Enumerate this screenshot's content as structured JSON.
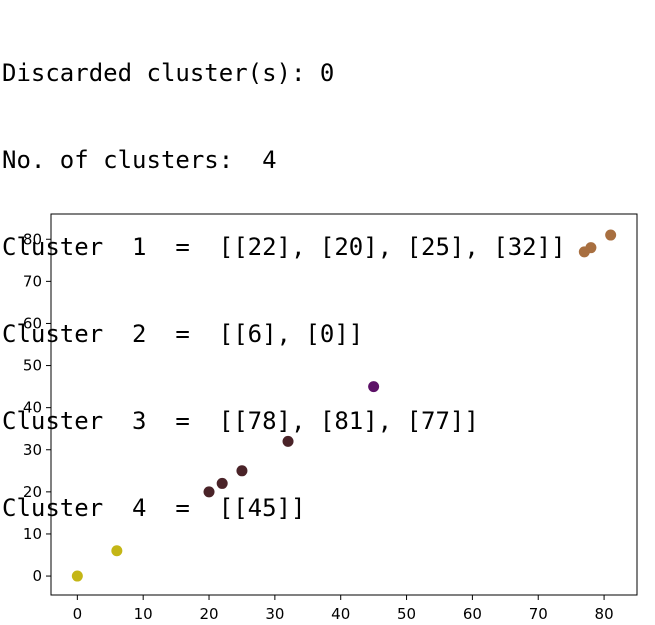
{
  "console": {
    "lines": [
      "Discarded cluster(s): 0",
      "No. of clusters:  4",
      "Cluster  1  =  [[22], [20], [25], [32]]",
      "Cluster  2  =  [[6], [0]]",
      "Cluster  3  =  [[78], [81], [77]]",
      "Cluster  4  =  [[45]]"
    ]
  },
  "chart_data": {
    "type": "scatter",
    "title": "",
    "xlabel": "",
    "ylabel": "",
    "xlim": [
      -4,
      85
    ],
    "ylim": [
      -4.5,
      86
    ],
    "xticks": [
      0,
      10,
      20,
      30,
      40,
      50,
      60,
      70,
      80
    ],
    "yticks": [
      0,
      10,
      20,
      30,
      40,
      50,
      60,
      70,
      80
    ],
    "grid": false,
    "series": [
      {
        "color": "#4a2328",
        "points": [
          [
            22,
            22
          ],
          [
            20,
            20
          ],
          [
            25,
            25
          ],
          [
            32,
            32
          ]
        ]
      },
      {
        "color": "#c4b616",
        "points": [
          [
            6,
            6
          ],
          [
            0,
            0
          ]
        ]
      },
      {
        "color": "#a86f40",
        "points": [
          [
            78,
            78
          ],
          [
            81,
            81
          ],
          [
            77,
            77
          ]
        ]
      },
      {
        "color": "#5c1167",
        "points": [
          [
            45,
            45
          ]
        ]
      }
    ]
  }
}
